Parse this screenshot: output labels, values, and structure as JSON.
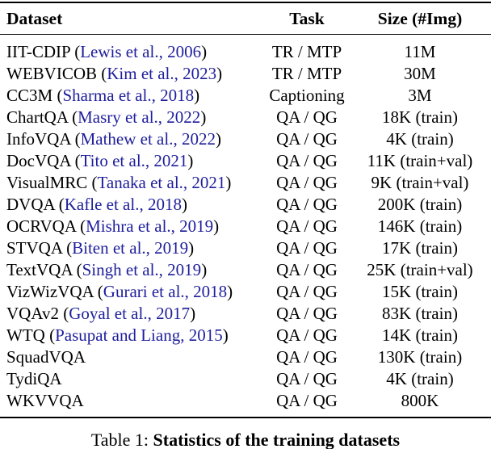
{
  "table": {
    "columns": [
      "Dataset",
      "Task",
      "Size (#Img)"
    ],
    "rows": [
      {
        "dataset": "IIT-CDIP",
        "citation": "Lewis et al., 2006",
        "task": "TR / MTP",
        "size": "11M"
      },
      {
        "dataset": "WEBVICOB",
        "citation": "Kim et al., 2023",
        "task": "TR / MTP",
        "size": "30M"
      },
      {
        "dataset": "CC3M",
        "citation": "Sharma et al., 2018",
        "task": "Captioning",
        "size": "3M"
      },
      {
        "dataset": "ChartQA",
        "citation": "Masry et al., 2022",
        "task": "QA / QG",
        "size": "18K (train)"
      },
      {
        "dataset": "InfoVQA",
        "citation": "Mathew et al., 2022",
        "task": "QA / QG",
        "size": "4K (train)"
      },
      {
        "dataset": "DocVQA",
        "citation": "Tito et al., 2021",
        "task": "QA / QG",
        "size": "11K (train+val)"
      },
      {
        "dataset": "VisualMRC",
        "citation": "Tanaka et al., 2021",
        "task": "QA / QG",
        "size": "9K (train+val)"
      },
      {
        "dataset": "DVQA",
        "citation": "Kafle et al., 2018",
        "task": "QA / QG",
        "size": "200K (train)"
      },
      {
        "dataset": "OCRVQA",
        "citation": "Mishra et al., 2019",
        "task": "QA / QG",
        "size": "146K (train)"
      },
      {
        "dataset": "STVQA",
        "citation": "Biten et al., 2019",
        "task": "QA / QG",
        "size": "17K (train)"
      },
      {
        "dataset": "TextVQA",
        "citation": "Singh et al., 2019",
        "task": "QA / QG",
        "size": "25K (train+val)"
      },
      {
        "dataset": "VizWizVQA",
        "citation": "Gurari et al., 2018",
        "task": "QA / QG",
        "size": "15K (train)"
      },
      {
        "dataset": "VQAv2",
        "citation": "Goyal et al., 2017",
        "task": "QA / QG",
        "size": "83K (train)"
      },
      {
        "dataset": "WTQ",
        "citation": "Pasupat and Liang, 2015",
        "task": "QA / QG",
        "size": "14K (train)"
      },
      {
        "dataset": "SquadVQA",
        "citation": null,
        "task": "QA / QG",
        "size": "130K (train)"
      },
      {
        "dataset": "TydiQA",
        "citation": null,
        "task": "QA / QG",
        "size": "4K (train)"
      },
      {
        "dataset": "WKVVQA",
        "citation": null,
        "task": "QA / QG",
        "size": "800K"
      }
    ]
  },
  "caption": {
    "prefix": "Table 1:",
    "title": "Statistics of the training datasets"
  },
  "colors": {
    "citation_blue": "#1e1e9c",
    "text": "#000000",
    "rule": "#000000",
    "background": "#ffffff"
  }
}
